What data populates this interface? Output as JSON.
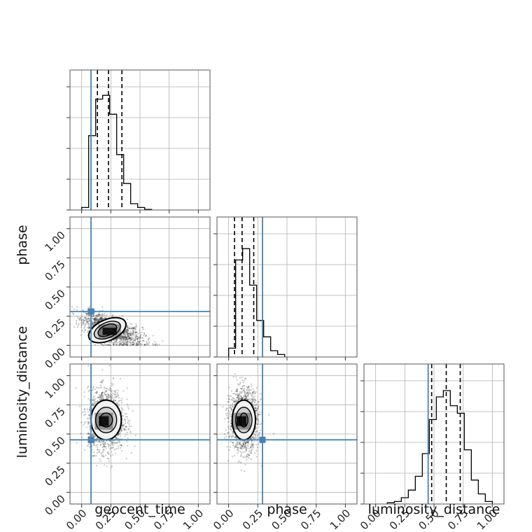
{
  "chart_data": {
    "type": "corner",
    "parameters": [
      "geocent_time",
      "phase",
      "luminosity_distance"
    ],
    "truth_color": "#4682b4",
    "tick_labels": [
      "0.00",
      "0.25",
      "0.50",
      "0.75",
      "1.00"
    ],
    "tick_values": [
      0,
      0.25,
      0.5,
      0.75,
      1.0
    ],
    "axis_range": [
      -0.1,
      1.1
    ],
    "truths": {
      "geocent_time": 0.08,
      "phase": 0.29,
      "luminosity_distance": 0.45
    },
    "histograms": {
      "geocent_time": {
        "range": [
          -0.1,
          1.1
        ],
        "bin_edges": [
          0.0,
          0.06,
          0.12,
          0.18,
          0.24,
          0.3,
          0.36,
          0.42,
          0.48,
          0.54,
          0.6
        ],
        "counts": [
          0.02,
          0.59,
          0.88,
          0.91,
          0.76,
          0.44,
          0.21,
          0.05,
          0.02,
          0.005
        ],
        "quantiles": [
          0.135,
          0.23,
          0.345
        ]
      },
      "phase": {
        "range": [
          -0.1,
          1.1
        ],
        "bin_edges": [
          0.0,
          0.06,
          0.12,
          0.18,
          0.24,
          0.3,
          0.36,
          0.42,
          0.48
        ],
        "counts": [
          0.07,
          0.77,
          0.86,
          0.57,
          0.29,
          0.16,
          0.05,
          0.02
        ],
        "quantiles": [
          0.05,
          0.115,
          0.215
        ]
      },
      "luminosity_distance": {
        "range": [
          -0.1,
          1.1
        ],
        "bin_edges": [
          0.1,
          0.16,
          0.22,
          0.28,
          0.34,
          0.4,
          0.46,
          0.52,
          0.58,
          0.64,
          0.7,
          0.76,
          0.82,
          0.88,
          0.94,
          1.0
        ],
        "counts": [
          0.01,
          0.02,
          0.05,
          0.11,
          0.22,
          0.4,
          0.67,
          0.85,
          0.9,
          0.78,
          0.72,
          0.43,
          0.19,
          0.08,
          0.02
        ],
        "quantiles": [
          0.48,
          0.605,
          0.725
        ]
      }
    },
    "scatter": {
      "phase_vs_geocent_time": {
        "x": "geocent_time",
        "y": "phase",
        "center": [
          0.22,
          0.13
        ],
        "spread": [
          0.1,
          0.07
        ],
        "correlation": -0.62,
        "contour_levels": [
          {
            "rx": 0.085,
            "ry": 0.045,
            "rotate_deg": -24
          },
          {
            "rx": 0.12,
            "ry": 0.065,
            "rotate_deg": -24
          },
          {
            "rx": 0.17,
            "ry": 0.09,
            "rotate_deg": -24
          }
        ],
        "density_peak": [
          0.24,
          0.12
        ]
      },
      "luminosity_distance_vs_geocent_time": {
        "x": "geocent_time",
        "y": "luminosity_distance",
        "center": [
          0.21,
          0.62
        ],
        "spread": [
          0.09,
          0.13
        ],
        "correlation": 0.0,
        "contour_levels": [
          {
            "rx": 0.055,
            "ry": 0.06,
            "rotate_deg": 0
          },
          {
            "rx": 0.09,
            "ry": 0.11,
            "rotate_deg": 0
          },
          {
            "rx": 0.13,
            "ry": 0.17,
            "rotate_deg": 0
          }
        ],
        "density_peak": [
          0.19,
          0.61
        ]
      },
      "luminosity_distance_vs_phase": {
        "x": "phase",
        "y": "luminosity_distance",
        "center": [
          0.13,
          0.62
        ],
        "spread": [
          0.07,
          0.13
        ],
        "correlation": 0.0,
        "contour_levels": [
          {
            "rx": 0.035,
            "ry": 0.06,
            "rotate_deg": 0
          },
          {
            "rx": 0.07,
            "ry": 0.11,
            "rotate_deg": 0
          },
          {
            "rx": 0.1,
            "ry": 0.17,
            "rotate_deg": 0
          }
        ],
        "density_peak": [
          0.11,
          0.61
        ]
      }
    },
    "grid": true
  }
}
